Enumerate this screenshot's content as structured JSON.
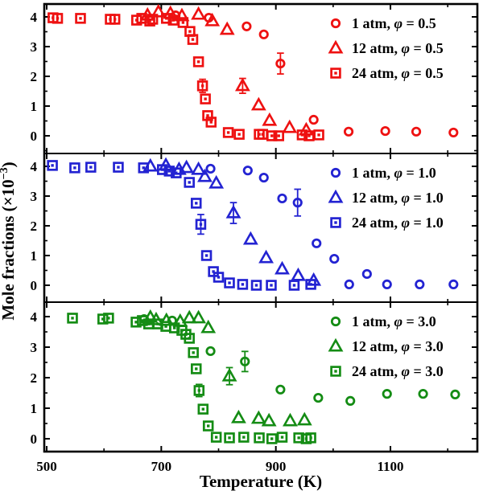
{
  "figure": {
    "xlabel": "Temperature (K)",
    "ylabel": "Mole fractions (×10⁻³)",
    "ylabel_main": "Mole fractions (×10",
    "ylabel_sup": "−3",
    "ylabel_end": ")",
    "background": "#ffffff",
    "frame_color": "#000000",
    "x_major_ticks": [
      500,
      700,
      900,
      1100
    ],
    "x_minor_ticks": [
      600,
      800,
      1000,
      1200
    ],
    "y_major_ticks": [
      0,
      1,
      2,
      3,
      4
    ],
    "y_minor_step": 0.5
  },
  "chart_data": [
    {
      "type": "scatter",
      "panel": "phi-0.5",
      "color": "#ee1111",
      "xlabel": "Temperature (K)",
      "ylabel": "Mole fractions (×10⁻³)",
      "xlim": [
        495,
        1250
      ],
      "ylim": [
        -0.6,
        4.5
      ],
      "legend_position": "top-right",
      "series": [
        {
          "label": "1 atm, φ = 0.5",
          "marker": "circle",
          "points": [
            [
              725,
              4.05
            ],
            [
              783,
              3.97
            ],
            [
              849,
              3.68
            ],
            [
              879,
              3.41
            ],
            [
              908,
              2.43,
              0.35
            ],
            [
              966,
              0.54
            ],
            [
              1027,
              0.14
            ],
            [
              1091,
              0.16
            ],
            [
              1145,
              0.14
            ],
            [
              1210,
              0.11
            ]
          ]
        },
        {
          "label": "12 atm, φ = 0.5",
          "marker": "triangle",
          "points": [
            [
              676,
              4.05
            ],
            [
              695,
              4.16
            ],
            [
              716,
              4.11
            ],
            [
              736,
              4.03
            ],
            [
              765,
              4.08
            ],
            [
              789,
              3.86
            ],
            [
              815,
              3.57
            ],
            [
              842,
              1.68,
              0.25
            ],
            [
              870,
              1.03
            ],
            [
              889,
              0.51
            ],
            [
              924,
              0.27
            ],
            [
              953,
              0.19
            ]
          ]
        },
        {
          "label": "24 atm, φ = 0.5",
          "marker": "square-dot",
          "points": [
            [
              511,
              3.97
            ],
            [
              519,
              3.95
            ],
            [
              559,
              3.95
            ],
            [
              611,
              3.92
            ],
            [
              619,
              3.92
            ],
            [
              657,
              3.89
            ],
            [
              666,
              3.95
            ],
            [
              680,
              3.86
            ],
            [
              685,
              3.92
            ],
            [
              709,
              3.95
            ],
            [
              721,
              3.89
            ],
            [
              738,
              3.81
            ],
            [
              750,
              3.51
            ],
            [
              755,
              3.24
            ],
            [
              765,
              2.49
            ],
            [
              772,
              1.68,
              0.22
            ],
            [
              777,
              1.24
            ],
            [
              781,
              0.68
            ],
            [
              787,
              0.46
            ],
            [
              817,
              0.11
            ],
            [
              836,
              0.05
            ],
            [
              871,
              0.05
            ],
            [
              877,
              0.05
            ],
            [
              893,
              0.0
            ],
            [
              905,
              0.0
            ],
            [
              946,
              0.03
            ],
            [
              958,
              0.0
            ],
            [
              975,
              0.03
            ]
          ]
        }
      ]
    },
    {
      "type": "scatter",
      "panel": "phi-1.0",
      "color": "#2323d2",
      "xlabel": "Temperature (K)",
      "ylabel": "Mole fractions (×10⁻³)",
      "xlim": [
        495,
        1250
      ],
      "ylim": [
        -0.6,
        4.5
      ],
      "legend_position": "top-right",
      "series": [
        {
          "label": "1 atm, φ = 1.0",
          "marker": "circle",
          "points": [
            [
              786,
              3.92
            ],
            [
              851,
              3.86
            ],
            [
              879,
              3.62
            ],
            [
              911,
              2.92
            ],
            [
              938,
              2.78,
              0.45
            ],
            [
              971,
              1.41
            ],
            [
              1002,
              0.89
            ],
            [
              1028,
              0.03
            ],
            [
              1059,
              0.38
            ],
            [
              1094,
              0.03
            ],
            [
              1151,
              0.03
            ],
            [
              1210,
              0.03
            ]
          ]
        },
        {
          "label": "12 atm, φ = 1.0",
          "marker": "triangle",
          "points": [
            [
              681,
              4.0
            ],
            [
              708,
              4.03
            ],
            [
              731,
              3.89
            ],
            [
              744,
              3.95
            ],
            [
              765,
              3.89
            ],
            [
              776,
              3.65
            ],
            [
              796,
              3.43
            ],
            [
              826,
              2.43,
              0.35
            ],
            [
              856,
              1.54
            ],
            [
              883,
              0.92
            ],
            [
              911,
              0.54
            ],
            [
              939,
              0.32
            ],
            [
              966,
              0.16
            ]
          ]
        },
        {
          "label": "24 atm, φ = 1.0",
          "marker": "square-dot",
          "points": [
            [
              510,
              4.03
            ],
            [
              549,
              3.95
            ],
            [
              577,
              3.97
            ],
            [
              625,
              3.97
            ],
            [
              669,
              3.95
            ],
            [
              702,
              3.89
            ],
            [
              714,
              3.84
            ],
            [
              726,
              3.78
            ],
            [
              749,
              3.46
            ],
            [
              761,
              2.76
            ],
            [
              769,
              2.05,
              0.33
            ],
            [
              779,
              1.0
            ],
            [
              791,
              0.46
            ],
            [
              800,
              0.27
            ],
            [
              819,
              0.08
            ],
            [
              842,
              0.03
            ],
            [
              866,
              0.0
            ],
            [
              892,
              0.0
            ],
            [
              932,
              0.0
            ],
            [
              961,
              0.03
            ]
          ]
        }
      ]
    },
    {
      "type": "scatter",
      "panel": "phi-3.0",
      "color": "#148c14",
      "xlabel": "Temperature (K)",
      "ylabel": "Mole fractions (×10⁻³)",
      "xlim": [
        495,
        1250
      ],
      "ylim": [
        -0.6,
        4.5
      ],
      "legend_position": "top-right",
      "series": [
        {
          "label": "1 atm, φ = 3.0",
          "marker": "circle",
          "points": [
            [
              670,
              3.92
            ],
            [
              719,
              3.87
            ],
            [
              786,
              2.87
            ],
            [
              846,
              2.53,
              0.33
            ],
            [
              908,
              1.61
            ],
            [
              974,
              1.34
            ],
            [
              1030,
              1.24
            ],
            [
              1094,
              1.47
            ],
            [
              1157,
              1.47
            ],
            [
              1213,
              1.45
            ]
          ]
        },
        {
          "label": "12 atm, φ = 3.0",
          "marker": "triangle",
          "points": [
            [
              681,
              3.97
            ],
            [
              691,
              3.89
            ],
            [
              709,
              3.87
            ],
            [
              733,
              3.84
            ],
            [
              749,
              3.95
            ],
            [
              765,
              3.95
            ],
            [
              782,
              3.63
            ],
            [
              819,
              2.05,
              0.28
            ],
            [
              835,
              0.68
            ],
            [
              870,
              0.66
            ],
            [
              888,
              0.58
            ],
            [
              925,
              0.58
            ],
            [
              950,
              0.61
            ]
          ]
        },
        {
          "label": "24 atm, φ = 3.0",
          "marker": "square-dot",
          "points": [
            [
              545,
              3.95
            ],
            [
              598,
              3.92
            ],
            [
              608,
              3.95
            ],
            [
              656,
              3.82
            ],
            [
              667,
              3.87
            ],
            [
              678,
              3.76
            ],
            [
              694,
              3.76
            ],
            [
              708,
              3.68
            ],
            [
              723,
              3.63
            ],
            [
              736,
              3.55
            ],
            [
              743,
              3.42
            ],
            [
              749,
              3.29
            ],
            [
              756,
              2.82
            ],
            [
              761,
              2.29
            ],
            [
              766,
              1.58,
              0.2
            ],
            [
              773,
              0.97
            ],
            [
              782,
              0.42
            ],
            [
              796,
              0.05
            ],
            [
              819,
              0.03
            ],
            [
              844,
              0.05
            ],
            [
              871,
              0.03
            ],
            [
              893,
              0.0
            ],
            [
              911,
              0.05
            ],
            [
              940,
              0.03
            ],
            [
              953,
              0.0
            ],
            [
              961,
              0.03
            ]
          ]
        }
      ]
    }
  ]
}
